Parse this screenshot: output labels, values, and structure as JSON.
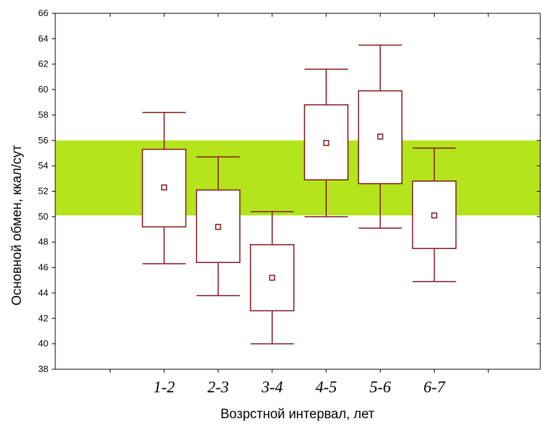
{
  "chart_data": {
    "type": "box",
    "xlabel": "Возрстной интервал, лет",
    "ylabel": "Основной обмен, ккал/сут",
    "ylim": [
      38,
      66
    ],
    "yticks": [
      "38",
      "40",
      "42",
      "44",
      "46",
      "48",
      "50",
      "52",
      "54",
      "56",
      "58",
      "60",
      "62",
      "64",
      "66"
    ],
    "categories": [
      "1-2",
      "2-3",
      "3-4",
      "4-5",
      "5-6",
      "6-7"
    ],
    "boxes": [
      {
        "category": "1-2",
        "whisker_low": 46.3,
        "q1": 49.2,
        "median": 52.3,
        "q3": 55.3,
        "whisker_high": 58.2
      },
      {
        "category": "2-3",
        "whisker_low": 43.8,
        "q1": 46.4,
        "median": 49.2,
        "q3": 52.1,
        "whisker_high": 54.7
      },
      {
        "category": "3-4",
        "whisker_low": 40.0,
        "q1": 42.6,
        "median": 45.2,
        "q3": 47.8,
        "whisker_high": 50.4
      },
      {
        "category": "4-5",
        "whisker_low": 50.0,
        "q1": 52.9,
        "median": 55.8,
        "q3": 58.8,
        "whisker_high": 61.6
      },
      {
        "category": "5-6",
        "whisker_low": 49.1,
        "q1": 52.6,
        "median": 56.3,
        "q3": 59.9,
        "whisker_high": 63.5
      },
      {
        "category": "6-7",
        "whisker_low": 44.9,
        "q1": 47.5,
        "median": 50.1,
        "q3": 52.8,
        "whisker_high": 55.4
      }
    ],
    "reference_band": {
      "low": 50.1,
      "high": 56.0
    },
    "colors": {
      "box": "#7f1416",
      "band": "#b4e51c",
      "median_marker": "#7f1416",
      "axis": "#000000"
    },
    "grid": false,
    "legend": "none"
  }
}
